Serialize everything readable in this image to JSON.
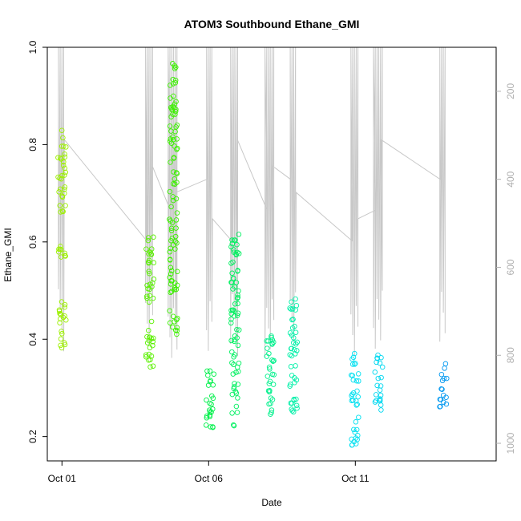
{
  "chart_data": {
    "type": "scatter",
    "title": "ATOM3 Southbound Ethane_GMI",
    "xlabel": "Date",
    "ylabel": "Ethane_GMI",
    "ylim": [
      0.15,
      1.0
    ],
    "xlim_day": [
      0.5,
      15.8
    ],
    "y_ticks": [
      "0.2",
      "0.4",
      "0.6",
      "0.8",
      "1.0"
    ],
    "y_tick_values": [
      0.2,
      0.4,
      0.6,
      0.8,
      1.0
    ],
    "x_ticks": [
      "Oct 01",
      "Oct 06",
      "Oct 11"
    ],
    "x_tick_days": [
      1,
      6,
      11
    ],
    "y2_ticks": [
      "200",
      "400",
      "600",
      "800",
      "1000"
    ],
    "y2_tick_values": [
      200,
      400,
      600,
      800,
      1000
    ],
    "y2_range": [
      100,
      1040
    ],
    "grid": false,
    "legend": "none",
    "series_clusters": [
      {
        "day": 1.0,
        "color": "#9cf000",
        "y_ranges": [
          [
            0.37,
            0.48
          ],
          [
            0.55,
            0.6
          ],
          [
            0.66,
            0.83
          ]
        ]
      },
      {
        "day": 4.0,
        "color": "#5af000",
        "y_ranges": [
          [
            0.33,
            0.44
          ],
          [
            0.47,
            0.62
          ]
        ]
      },
      {
        "day": 4.8,
        "color": "#3cf000",
        "y_ranges": [
          [
            0.4,
            0.46
          ],
          [
            0.49,
            0.97
          ]
        ]
      },
      {
        "day": 6.05,
        "color": "#00f04a",
        "y_ranges": [
          [
            0.2,
            0.34
          ]
        ]
      },
      {
        "day": 6.9,
        "color": "#00f060",
        "y_ranges": [
          [
            0.22,
            0.62
          ]
        ]
      },
      {
        "day": 8.1,
        "color": "#00f08c",
        "y_ranges": [
          [
            0.23,
            0.41
          ]
        ]
      },
      {
        "day": 8.9,
        "color": "#00f0a8",
        "y_ranges": [
          [
            0.25,
            0.49
          ]
        ]
      },
      {
        "day": 11.0,
        "color": "#00e0f0",
        "y_ranges": [
          [
            0.18,
            0.38
          ]
        ]
      },
      {
        "day": 11.8,
        "color": "#00d8f0",
        "y_ranges": [
          [
            0.25,
            0.37
          ]
        ]
      },
      {
        "day": 14.0,
        "color": "#0098f0",
        "y_ranges": [
          [
            0.26,
            0.35
          ]
        ]
      }
    ],
    "pressure_line_color": "#c8c8c8"
  }
}
